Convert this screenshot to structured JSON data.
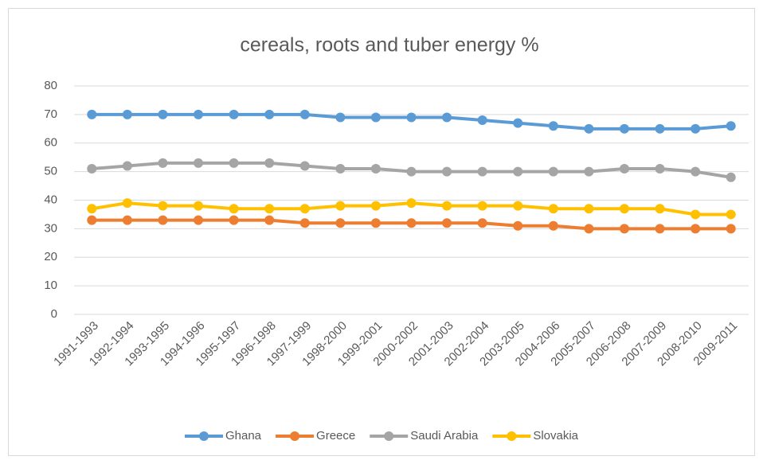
{
  "chart_data": {
    "type": "line",
    "title": "cereals, roots and tuber energy %",
    "categories": [
      "1991-1993",
      "1992-1994",
      "1993-1995",
      "1994-1996",
      "1995-1997",
      "1996-1998",
      "1997-1999",
      "1998-2000",
      "1999-2001",
      "2000-2002",
      "2001-2003",
      "2002-2004",
      "2003-2005",
      "2004-2006",
      "2005-2007",
      "2006-2008",
      "2007-2009",
      "2008-2010",
      "2009-2011"
    ],
    "series": [
      {
        "name": "Ghana",
        "color": "#5b9bd5",
        "values": [
          70,
          70,
          70,
          70,
          70,
          70,
          70,
          69,
          69,
          69,
          69,
          68,
          67,
          66,
          65,
          65,
          65,
          65,
          66
        ]
      },
      {
        "name": "Greece",
        "color": "#ed7d31",
        "values": [
          33,
          33,
          33,
          33,
          33,
          33,
          32,
          32,
          32,
          32,
          32,
          32,
          31,
          31,
          30,
          30,
          30,
          30,
          30
        ]
      },
      {
        "name": "Saudi Arabia",
        "color": "#a5a5a5",
        "values": [
          51,
          52,
          53,
          53,
          53,
          53,
          52,
          51,
          51,
          50,
          50,
          50,
          50,
          50,
          50,
          51,
          51,
          50,
          48
        ]
      },
      {
        "name": "Slovakia",
        "color": "#ffc000",
        "values": [
          37,
          39,
          38,
          38,
          37,
          37,
          37,
          38,
          38,
          39,
          38,
          38,
          38,
          37,
          37,
          37,
          37,
          35,
          35
        ]
      }
    ],
    "ylim": [
      0,
      80
    ],
    "yticks": [
      0,
      10,
      20,
      30,
      40,
      50,
      60,
      70,
      80
    ],
    "grid": true,
    "legend": "bottom"
  }
}
